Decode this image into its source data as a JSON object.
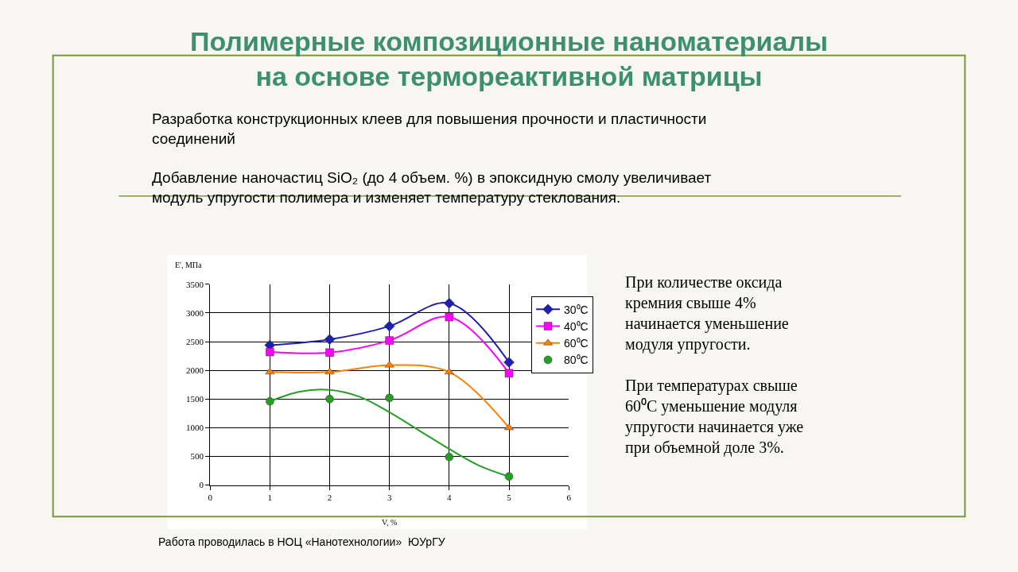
{
  "chart_data": {
    "type": "line",
    "title": "Полимерные композиционные наноматериалы\nна основе термореактивной матрицы",
    "subtitle": "Разработка конструкционных клеев для повышения прочности и пластичности\nсоединений\n\nДобавление наночастиц SiO₂ (до 4 объем. %) в эпоксидную смолу увеличивает\nмодуль упругости полимера и изменяет температуру стеклования.",
    "xlabel": "V, %",
    "ylabel": "E', МПа",
    "x": [
      1,
      2,
      3,
      4,
      5
    ],
    "series": [
      {
        "name": "30⁰C",
        "color": "#1f1fb4",
        "marker": "diamond",
        "values": [
          2440,
          2540,
          2770,
          3170,
          2140
        ]
      },
      {
        "name": "40⁰C",
        "color": "#ff00ff",
        "marker": "square",
        "values": [
          2320,
          2310,
          2520,
          2930,
          1950
        ]
      },
      {
        "name": "60⁰C",
        "color": "#ff8000",
        "marker": "triangle",
        "values": [
          1970,
          1970,
          2090,
          1970,
          1000
        ]
      },
      {
        "name": "80⁰C",
        "color": "#23a023",
        "type": "scatter",
        "marker": "circle",
        "values": [
          1460,
          1500,
          1520,
          490,
          150
        ]
      },
      {
        "type": "line",
        "color": "#23a023",
        "marker": "none",
        "x": [
          1,
          1.5,
          2,
          2.5,
          3,
          3.5,
          4,
          4.5,
          5
        ],
        "values": [
          1460,
          1630,
          1660,
          1540,
          1270,
          950,
          630,
          340,
          150
        ]
      }
    ],
    "xlim": [
      0,
      6
    ],
    "xticks": [
      0,
      1,
      2,
      3,
      4,
      5,
      6
    ],
    "ylim": [
      0,
      3500
    ],
    "yticks": [
      0,
      500,
      1000,
      1500,
      2000,
      2500,
      3000,
      3500
    ],
    "grid": true,
    "legend": "top right",
    "annotations": [
      "При количестве оксида\nкремния свыше 4%\nначинается уменьшение\nмодуля упругости.\n\nПри температурах свыше\n60⁰С уменьшение модуля\nупругости начинается уже\nпри объемной доле 3%.",
      "Работа проводилась в НОЦ «Нанотехнологии»  ЮУрГУ"
    ]
  }
}
